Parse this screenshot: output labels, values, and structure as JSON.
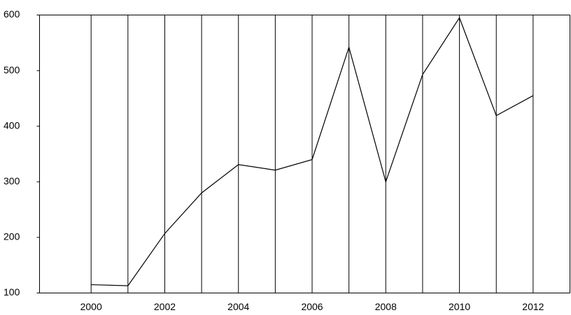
{
  "chart_data": {
    "type": "line",
    "x": [
      2000,
      2001,
      2002,
      2003,
      2004,
      2005,
      2006,
      2007,
      2008,
      2009,
      2010,
      2011,
      2012
    ],
    "series": [
      {
        "color": "#000000",
        "values": [
          115,
          113,
          207,
          280,
          331,
          321,
          340,
          542,
          300,
          493,
          595,
          419,
          455
        ]
      }
    ],
    "xlim": [
      1998.6,
      2013
    ],
    "xticks": [
      2000,
      2002,
      2004,
      2006,
      2008,
      2010,
      2012
    ],
    "xgrid": [
      2000,
      2001,
      2002,
      2003,
      2004,
      2005,
      2006,
      2007,
      2008,
      2009,
      2010,
      2011,
      2012
    ],
    "ylim": [
      100,
      600
    ],
    "yticks": [
      100,
      200,
      300,
      400,
      500,
      600
    ]
  }
}
